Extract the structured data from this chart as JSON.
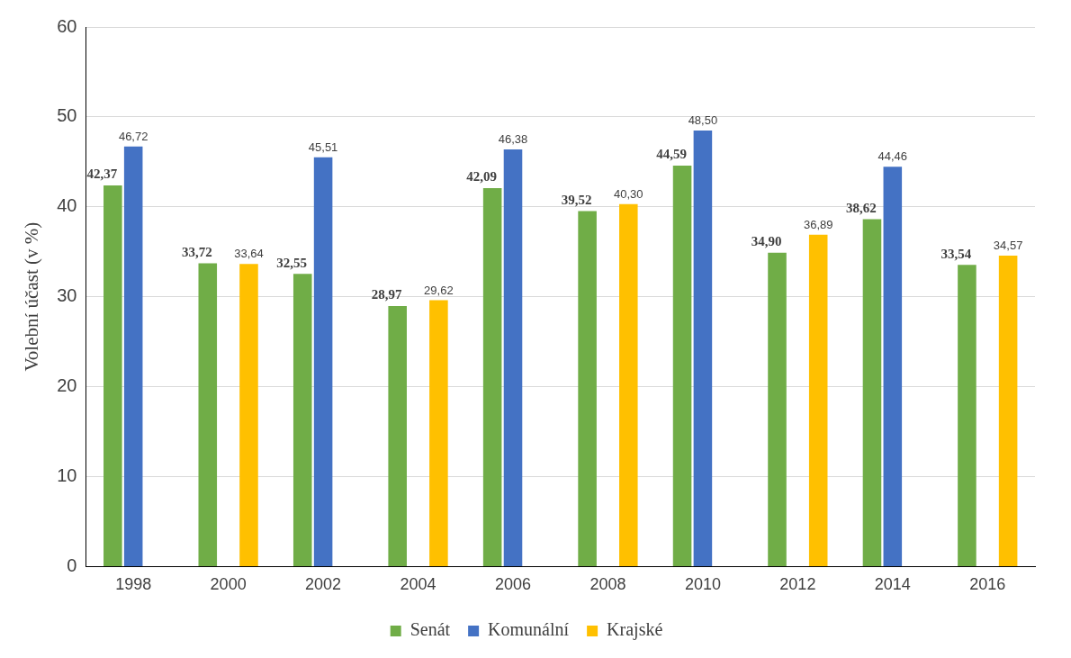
{
  "chart_data": {
    "type": "bar",
    "ylabel": "Volební účast (v %)",
    "categories": [
      "1998",
      "2000",
      "2002",
      "2004",
      "2006",
      "2008",
      "2010",
      "2012",
      "2014",
      "2016"
    ],
    "series": [
      {
        "name": "Senát",
        "color": "#70ad47",
        "values": [
          42.37,
          33.72,
          32.55,
          28.97,
          42.09,
          39.52,
          44.59,
          34.9,
          38.62,
          33.54
        ],
        "value_labels": [
          "42,37",
          "33,72",
          "32,55",
          "28,97",
          "42,09",
          "39,52",
          "44,59",
          "34,90",
          "38,62",
          "33,54"
        ]
      },
      {
        "name": "Komunální",
        "color": "#4472c4",
        "values": [
          46.72,
          null,
          45.51,
          null,
          46.38,
          null,
          48.5,
          null,
          44.46,
          null
        ],
        "value_labels": [
          "46,72",
          null,
          "45,51",
          null,
          "46,38",
          null,
          "48,50",
          null,
          "44,46",
          null
        ]
      },
      {
        "name": "Krajské",
        "color": "#ffc000",
        "values": [
          null,
          33.64,
          null,
          29.62,
          null,
          40.3,
          null,
          36.89,
          null,
          34.57
        ],
        "value_labels": [
          null,
          "33,64",
          null,
          "29,62",
          null,
          "40,30",
          null,
          "36,89",
          null,
          "34,57"
        ]
      }
    ],
    "ylim": [
      0,
      60
    ],
    "yticks": [
      0,
      10,
      20,
      30,
      40,
      50,
      60
    ],
    "grid": "y",
    "legend": "bottom"
  }
}
